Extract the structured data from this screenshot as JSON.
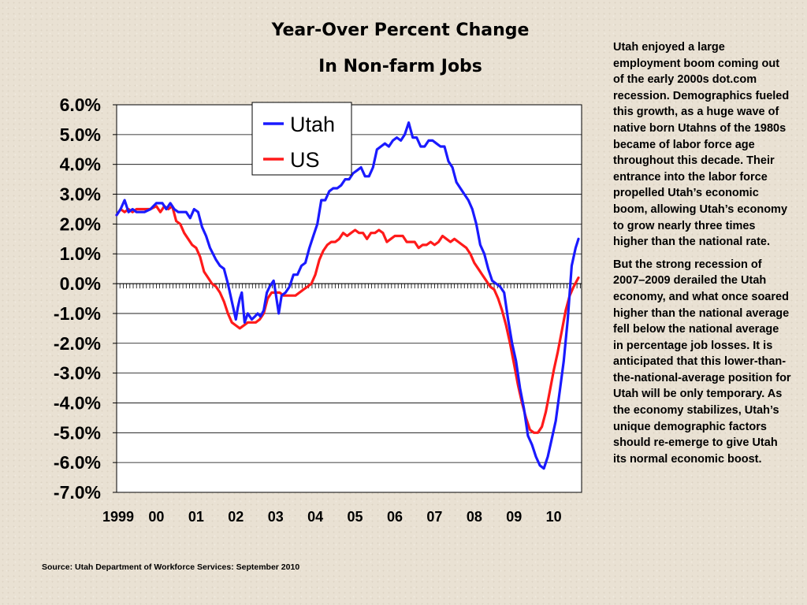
{
  "chart_data": {
    "type": "line",
    "title": "Year-Over Percent Change",
    "subtitle": "In Non-farm Jobs",
    "x_tick_labels": [
      "1999",
      "00",
      "01",
      "02",
      "03",
      "04",
      "05",
      "06",
      "07",
      "08",
      "09",
      "10"
    ],
    "y_tick_labels": [
      "6.0%",
      "5.0%",
      "4.0%",
      "3.0%",
      "2.0%",
      "1.0%",
      "0.0%",
      "-1.0%",
      "-2.0%",
      "-3.0%",
      "-4.0%",
      "-5.0%",
      "-6.0%",
      "-7.0%"
    ],
    "ylim": [
      -7,
      6
    ],
    "xlim": [
      1999.0,
      2010.7
    ],
    "grid": true,
    "legend_position": "top-left-inside",
    "series": [
      {
        "name": "Utah",
        "color": "#1a1aff",
        "points": [
          [
            1999.0,
            2.3
          ],
          [
            1999.1,
            2.5
          ],
          [
            1999.2,
            2.8
          ],
          [
            1999.3,
            2.4
          ],
          [
            1999.4,
            2.5
          ],
          [
            1999.5,
            2.4
          ],
          [
            1999.7,
            2.4
          ],
          [
            1999.85,
            2.5
          ],
          [
            2000.0,
            2.7
          ],
          [
            2000.15,
            2.7
          ],
          [
            2000.25,
            2.5
          ],
          [
            2000.35,
            2.7
          ],
          [
            2000.45,
            2.5
          ],
          [
            2000.55,
            2.4
          ],
          [
            2000.65,
            2.4
          ],
          [
            2000.75,
            2.4
          ],
          [
            2000.85,
            2.2
          ],
          [
            2000.95,
            2.5
          ],
          [
            2001.05,
            2.4
          ],
          [
            2001.15,
            1.9
          ],
          [
            2001.25,
            1.6
          ],
          [
            2001.35,
            1.2
          ],
          [
            2001.5,
            0.8
          ],
          [
            2001.6,
            0.6
          ],
          [
            2001.7,
            0.5
          ],
          [
            2001.8,
            0.0
          ],
          [
            2001.9,
            -0.6
          ],
          [
            2002.0,
            -1.2
          ],
          [
            2002.05,
            -0.8
          ],
          [
            2002.1,
            -0.5
          ],
          [
            2002.15,
            -0.3
          ],
          [
            2002.22,
            -1.3
          ],
          [
            2002.3,
            -1.0
          ],
          [
            2002.4,
            -1.2
          ],
          [
            2002.48,
            -1.1
          ],
          [
            2002.55,
            -1.0
          ],
          [
            2002.62,
            -1.1
          ],
          [
            2002.7,
            -0.9
          ],
          [
            2002.78,
            -0.3
          ],
          [
            2002.85,
            -0.1
          ],
          [
            2002.95,
            0.1
          ],
          [
            2003.0,
            -0.3
          ],
          [
            2003.08,
            -1.0
          ],
          [
            2003.15,
            -0.4
          ],
          [
            2003.25,
            -0.3
          ],
          [
            2003.35,
            -0.1
          ],
          [
            2003.45,
            0.3
          ],
          [
            2003.55,
            0.3
          ],
          [
            2003.65,
            0.6
          ],
          [
            2003.75,
            0.7
          ],
          [
            2003.85,
            1.2
          ],
          [
            2003.95,
            1.6
          ],
          [
            2004.05,
            2.0
          ],
          [
            2004.15,
            2.8
          ],
          [
            2004.25,
            2.8
          ],
          [
            2004.35,
            3.1
          ],
          [
            2004.45,
            3.2
          ],
          [
            2004.55,
            3.2
          ],
          [
            2004.65,
            3.3
          ],
          [
            2004.75,
            3.5
          ],
          [
            2004.85,
            3.5
          ],
          [
            2004.95,
            3.7
          ],
          [
            2005.05,
            3.8
          ],
          [
            2005.15,
            3.9
          ],
          [
            2005.25,
            3.6
          ],
          [
            2005.35,
            3.6
          ],
          [
            2005.45,
            3.9
          ],
          [
            2005.55,
            4.5
          ],
          [
            2005.65,
            4.6
          ],
          [
            2005.75,
            4.7
          ],
          [
            2005.85,
            4.6
          ],
          [
            2005.95,
            4.8
          ],
          [
            2006.05,
            4.9
          ],
          [
            2006.15,
            4.8
          ],
          [
            2006.25,
            5.0
          ],
          [
            2006.35,
            5.4
          ],
          [
            2006.45,
            4.9
          ],
          [
            2006.55,
            4.9
          ],
          [
            2006.65,
            4.6
          ],
          [
            2006.75,
            4.6
          ],
          [
            2006.85,
            4.8
          ],
          [
            2006.95,
            4.8
          ],
          [
            2007.05,
            4.7
          ],
          [
            2007.15,
            4.6
          ],
          [
            2007.25,
            4.6
          ],
          [
            2007.35,
            4.1
          ],
          [
            2007.45,
            3.9
          ],
          [
            2007.55,
            3.4
          ],
          [
            2007.65,
            3.2
          ],
          [
            2007.75,
            3.0
          ],
          [
            2007.85,
            2.8
          ],
          [
            2007.95,
            2.5
          ],
          [
            2008.05,
            2.0
          ],
          [
            2008.15,
            1.3
          ],
          [
            2008.25,
            1.0
          ],
          [
            2008.35,
            0.5
          ],
          [
            2008.45,
            0.1
          ],
          [
            2008.55,
            0.0
          ],
          [
            2008.65,
            -0.1
          ],
          [
            2008.75,
            -0.3
          ],
          [
            2008.85,
            -1.2
          ],
          [
            2008.95,
            -2.0
          ],
          [
            2009.05,
            -2.6
          ],
          [
            2009.15,
            -3.5
          ],
          [
            2009.25,
            -4.2
          ],
          [
            2009.35,
            -5.1
          ],
          [
            2009.45,
            -5.4
          ],
          [
            2009.55,
            -5.8
          ],
          [
            2009.65,
            -6.1
          ],
          [
            2009.75,
            -6.2
          ],
          [
            2009.85,
            -5.8
          ],
          [
            2009.95,
            -5.2
          ],
          [
            2010.05,
            -4.6
          ],
          [
            2010.15,
            -3.6
          ],
          [
            2010.25,
            -2.6
          ],
          [
            2010.35,
            -1.2
          ],
          [
            2010.45,
            0.6
          ],
          [
            2010.55,
            1.2
          ],
          [
            2010.62,
            1.5
          ]
        ]
      },
      {
        "name": "US",
        "color": "#ff1a1a",
        "points": [
          [
            1999.0,
            2.3
          ],
          [
            1999.1,
            2.5
          ],
          [
            1999.2,
            2.4
          ],
          [
            1999.3,
            2.5
          ],
          [
            1999.4,
            2.4
          ],
          [
            1999.5,
            2.5
          ],
          [
            1999.7,
            2.5
          ],
          [
            1999.85,
            2.5
          ],
          [
            2000.0,
            2.6
          ],
          [
            2000.1,
            2.4
          ],
          [
            2000.2,
            2.6
          ],
          [
            2000.3,
            2.5
          ],
          [
            2000.4,
            2.6
          ],
          [
            2000.5,
            2.1
          ],
          [
            2000.6,
            2.0
          ],
          [
            2000.7,
            1.7
          ],
          [
            2000.8,
            1.5
          ],
          [
            2000.9,
            1.3
          ],
          [
            2001.0,
            1.2
          ],
          [
            2001.1,
            0.9
          ],
          [
            2001.2,
            0.4
          ],
          [
            2001.3,
            0.2
          ],
          [
            2001.4,
            0.0
          ],
          [
            2001.5,
            -0.1
          ],
          [
            2001.6,
            -0.3
          ],
          [
            2001.7,
            -0.6
          ],
          [
            2001.8,
            -1.0
          ],
          [
            2001.9,
            -1.3
          ],
          [
            2002.0,
            -1.4
          ],
          [
            2002.1,
            -1.5
          ],
          [
            2002.2,
            -1.4
          ],
          [
            2002.3,
            -1.3
          ],
          [
            2002.4,
            -1.3
          ],
          [
            2002.5,
            -1.3
          ],
          [
            2002.6,
            -1.2
          ],
          [
            2002.7,
            -1.0
          ],
          [
            2002.8,
            -0.5
          ],
          [
            2002.9,
            -0.3
          ],
          [
            2003.0,
            -0.3
          ],
          [
            2003.1,
            -0.3
          ],
          [
            2003.2,
            -0.4
          ],
          [
            2003.3,
            -0.4
          ],
          [
            2003.4,
            -0.4
          ],
          [
            2003.5,
            -0.4
          ],
          [
            2003.6,
            -0.3
          ],
          [
            2003.7,
            -0.2
          ],
          [
            2003.8,
            -0.1
          ],
          [
            2003.9,
            0.0
          ],
          [
            2004.0,
            0.3
          ],
          [
            2004.1,
            0.8
          ],
          [
            2004.2,
            1.1
          ],
          [
            2004.3,
            1.3
          ],
          [
            2004.4,
            1.4
          ],
          [
            2004.5,
            1.4
          ],
          [
            2004.6,
            1.5
          ],
          [
            2004.7,
            1.7
          ],
          [
            2004.8,
            1.6
          ],
          [
            2004.9,
            1.7
          ],
          [
            2005.0,
            1.8
          ],
          [
            2005.1,
            1.7
          ],
          [
            2005.2,
            1.7
          ],
          [
            2005.3,
            1.5
          ],
          [
            2005.4,
            1.7
          ],
          [
            2005.5,
            1.7
          ],
          [
            2005.6,
            1.8
          ],
          [
            2005.7,
            1.7
          ],
          [
            2005.8,
            1.4
          ],
          [
            2005.9,
            1.5
          ],
          [
            2006.0,
            1.6
          ],
          [
            2006.1,
            1.6
          ],
          [
            2006.2,
            1.6
          ],
          [
            2006.3,
            1.4
          ],
          [
            2006.4,
            1.4
          ],
          [
            2006.5,
            1.4
          ],
          [
            2006.6,
            1.2
          ],
          [
            2006.7,
            1.3
          ],
          [
            2006.8,
            1.3
          ],
          [
            2006.9,
            1.4
          ],
          [
            2007.0,
            1.3
          ],
          [
            2007.1,
            1.4
          ],
          [
            2007.2,
            1.6
          ],
          [
            2007.3,
            1.5
          ],
          [
            2007.4,
            1.4
          ],
          [
            2007.5,
            1.5
          ],
          [
            2007.6,
            1.4
          ],
          [
            2007.7,
            1.3
          ],
          [
            2007.8,
            1.2
          ],
          [
            2007.9,
            1.0
          ],
          [
            2008.0,
            0.7
          ],
          [
            2008.1,
            0.5
          ],
          [
            2008.2,
            0.3
          ],
          [
            2008.3,
            0.1
          ],
          [
            2008.4,
            -0.1
          ],
          [
            2008.5,
            -0.2
          ],
          [
            2008.6,
            -0.5
          ],
          [
            2008.7,
            -0.9
          ],
          [
            2008.8,
            -1.4
          ],
          [
            2008.9,
            -2.0
          ],
          [
            2009.0,
            -2.7
          ],
          [
            2009.1,
            -3.4
          ],
          [
            2009.2,
            -4.0
          ],
          [
            2009.3,
            -4.5
          ],
          [
            2009.4,
            -4.9
          ],
          [
            2009.5,
            -5.0
          ],
          [
            2009.6,
            -5.0
          ],
          [
            2009.7,
            -4.8
          ],
          [
            2009.8,
            -4.3
          ],
          [
            2009.9,
            -3.6
          ],
          [
            2010.0,
            -2.9
          ],
          [
            2010.1,
            -2.3
          ],
          [
            2010.2,
            -1.6
          ],
          [
            2010.3,
            -0.9
          ],
          [
            2010.4,
            -0.4
          ],
          [
            2010.5,
            -0.1
          ],
          [
            2010.62,
            0.2
          ]
        ]
      }
    ]
  },
  "sidebar": {
    "paragraph1": "Utah enjoyed a large employment boom coming out of the early 2000s dot.com recession. Demographics fueled this growth, as a huge wave of native born Utahns of the 1980s became of labor force age throughout this decade. Their entrance into the labor force propelled Utah’s economic boom, allowing Utah’s economy to grow nearly three times higher than the national rate.",
    "paragraph2": "But the strong recession of 2007–2009 derailed the Utah economy, and what once soared higher than the national average fell below the national average in percentage job losses. It is anticipated that this lower-than-the-national-average position for Utah will be only temporary. As the economy stabilizes, Utah’s unique demographic factors should re-emerge to give Utah its normal economic boost."
  },
  "source": "Source: Utah Department of Workforce Services: September 2010"
}
